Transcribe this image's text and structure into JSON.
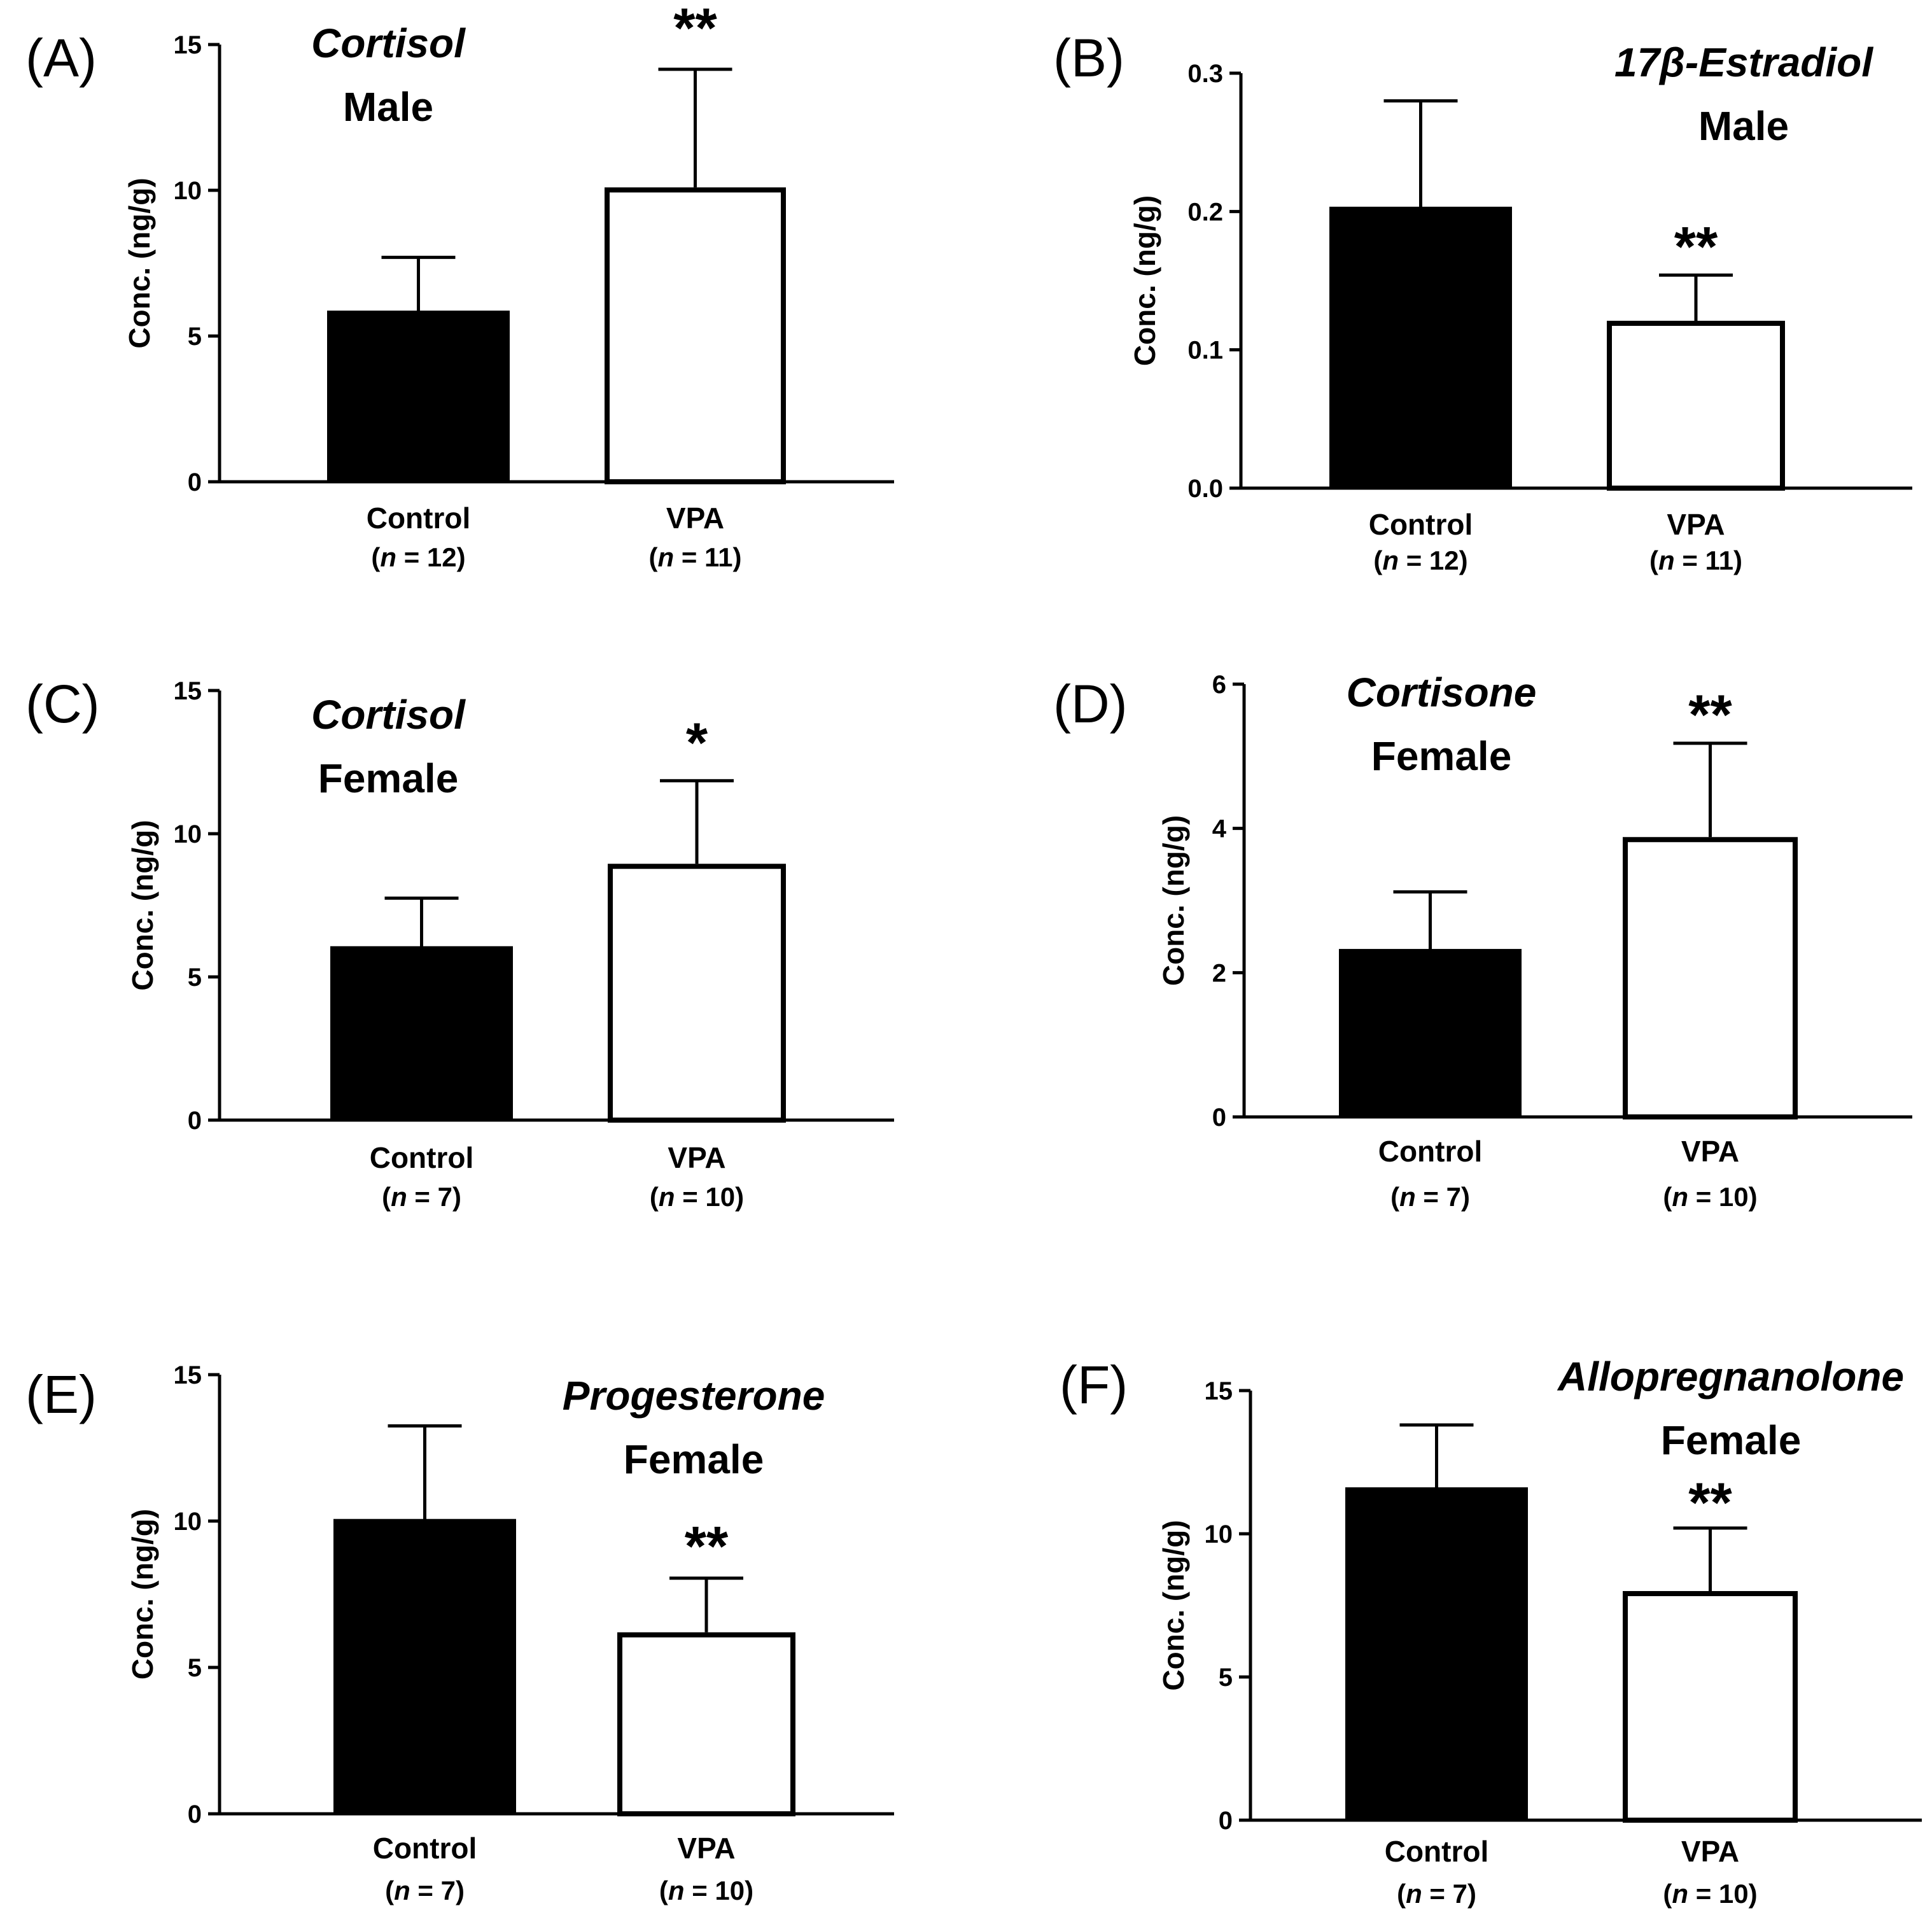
{
  "chart_data": [
    {
      "panel": "(A)",
      "type": "bar",
      "title_line1": "Cortisol",
      "title_line2": "Male",
      "ylabel": "Conc. (ng/g)",
      "ylim": [
        0,
        15
      ],
      "yticks": [
        0,
        5,
        10,
        15
      ],
      "ytick_labels": [
        "0",
        "5",
        "10",
        "15"
      ],
      "categories": [
        "Control",
        "VPA"
      ],
      "n_labels": [
        [
          "(",
          "n",
          " = 12)"
        ],
        [
          "(",
          "n",
          " = 11)"
        ]
      ],
      "values": [
        5.85,
        10.1
      ],
      "errors": [
        1.85,
        4.05
      ],
      "fills": [
        "#000000",
        "#ffffff"
      ],
      "significance": [
        "",
        "**"
      ]
    },
    {
      "panel": "(B)",
      "type": "bar",
      "title_line1": "17β-Estradiol",
      "title_line2": "Male",
      "ylabel": "Conc. (ng/g)",
      "ylim": [
        0,
        0.3
      ],
      "yticks": [
        0,
        0.1,
        0.2,
        0.3
      ],
      "ytick_labels": [
        "0.0",
        "0.1",
        "0.2",
        "0.3"
      ],
      "categories": [
        "Control",
        "VPA"
      ],
      "n_labels": [
        [
          "(",
          "n",
          " = 12)"
        ],
        [
          "(",
          "n",
          " = 11)"
        ]
      ],
      "values": [
        0.203,
        0.121
      ],
      "errors": [
        0.077,
        0.033
      ],
      "fills": [
        "#000000",
        "#ffffff"
      ],
      "significance": [
        "",
        "**"
      ]
    },
    {
      "panel": "(C)",
      "type": "bar",
      "title_line1": "Cortisol",
      "title_line2": "Female",
      "ylabel": "Conc. (ng/g)",
      "ylim": [
        0,
        15
      ],
      "yticks": [
        0,
        5,
        10,
        15
      ],
      "ytick_labels": [
        "0",
        "5",
        "10",
        "15"
      ],
      "categories": [
        "Control",
        "VPA"
      ],
      "n_labels": [
        [
          "(",
          "n",
          " = 7)"
        ],
        [
          "(",
          "n",
          " = 10)"
        ]
      ],
      "values": [
        6.05,
        8.95
      ],
      "errors": [
        1.7,
        2.9
      ],
      "fills": [
        "#000000",
        "#ffffff"
      ],
      "significance": [
        "",
        "*"
      ]
    },
    {
      "panel": "(D)",
      "type": "bar",
      "title_line1": "Cortisone",
      "title_line2": "Female",
      "ylabel": "Conc. (ng/g)",
      "ylim": [
        0,
        6
      ],
      "yticks": [
        0,
        2,
        4,
        6
      ],
      "ytick_labels": [
        "0",
        "2",
        "4",
        "6"
      ],
      "categories": [
        "Control",
        "VPA"
      ],
      "n_labels": [
        [
          "(",
          "n",
          " = 7)"
        ],
        [
          "(",
          "n",
          " = 10)"
        ]
      ],
      "values": [
        2.32,
        3.88
      ],
      "errors": [
        0.8,
        1.3
      ],
      "fills": [
        "#000000",
        "#ffffff"
      ],
      "significance": [
        "",
        "**"
      ]
    },
    {
      "panel": "(E)",
      "type": "bar",
      "title_line1": "Progesterone",
      "title_line2": "Female",
      "ylabel": "Conc. (ng/g)",
      "ylim": [
        0,
        15
      ],
      "yticks": [
        0,
        5,
        10,
        15
      ],
      "ytick_labels": [
        "0",
        "5",
        "10",
        "15"
      ],
      "categories": [
        "Control",
        "VPA"
      ],
      "n_labels": [
        [
          "(",
          "n",
          " = 7)"
        ],
        [
          "(",
          "n",
          " = 10)"
        ]
      ],
      "values": [
        10.05,
        6.2
      ],
      "errors": [
        3.2,
        1.85
      ],
      "fills": [
        "#000000",
        "#ffffff"
      ],
      "significance": [
        "",
        "**"
      ]
    },
    {
      "panel": "(F)",
      "type": "bar",
      "title_line1": "Allopregnanolone",
      "title_line2": "Female",
      "ylabel": "Conc. (ng/g)",
      "ylim": [
        0,
        15
      ],
      "yticks": [
        0,
        5,
        10,
        15
      ],
      "ytick_labels": [
        "0",
        "5",
        "10",
        "15"
      ],
      "categories": [
        "Control",
        "VPA"
      ],
      "n_labels": [
        [
          "(",
          "n",
          " = 7)"
        ],
        [
          "(",
          "n",
          " = 10)"
        ]
      ],
      "values": [
        11.6,
        8.0
      ],
      "errors": [
        2.2,
        2.2
      ],
      "fills": [
        "#000000",
        "#ffffff"
      ],
      "significance": [
        "",
        "**"
      ]
    }
  ]
}
